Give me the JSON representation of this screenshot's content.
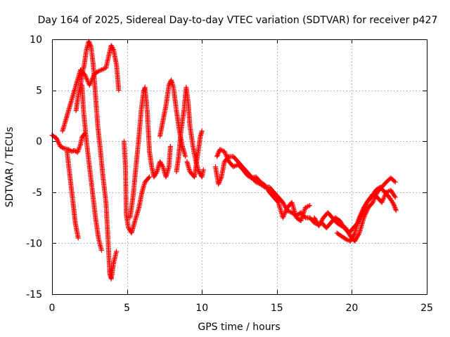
{
  "chart_data": {
    "type": "scatter",
    "title": "Day 164 of 2025, Sidereal Day-to-day VTEC variation (SDTVAR) for receiver p427",
    "xlabel": "GPS time / hours",
    "ylabel": "SDTVAR / TECUs",
    "xlim": [
      0,
      25
    ],
    "ylim": [
      -15,
      10
    ],
    "xticks": [
      0,
      5,
      10,
      15,
      20,
      25
    ],
    "yticks": [
      -15,
      -10,
      -5,
      0,
      5,
      10
    ],
    "grid": true,
    "marker": "plus",
    "marker_color": "#ff0000",
    "series": [
      {
        "name": "SDTVAR",
        "tracks": [
          [
            [
              0.0,
              0.6
            ],
            [
              0.3,
              0.3
            ],
            [
              0.55,
              -0.5
            ],
            [
              0.8,
              -0.7
            ],
            [
              1.1,
              -0.8
            ],
            [
              1.3,
              -1.0
            ],
            [
              1.5,
              -0.9
            ],
            [
              1.7,
              -1.1
            ],
            [
              1.9,
              -0.3
            ],
            [
              2.0,
              0.4
            ],
            [
              2.2,
              0.8
            ]
          ],
          [
            [
              0.7,
              1.0
            ],
            [
              0.9,
              2.0
            ],
            [
              1.1,
              3.0
            ],
            [
              1.3,
              4.0
            ],
            [
              1.5,
              5.0
            ],
            [
              1.7,
              6.0
            ],
            [
              1.9,
              7.0
            ],
            [
              2.2,
              6.5
            ],
            [
              2.5,
              5.5
            ],
            [
              2.8,
              6.5
            ],
            [
              3.0,
              6.8
            ],
            [
              3.3,
              7.0
            ],
            [
              3.6,
              7.2
            ],
            [
              3.8,
              8.5
            ],
            [
              3.95,
              9.4
            ],
            [
              4.1,
              9.0
            ],
            [
              4.3,
              7.5
            ],
            [
              4.45,
              5.0
            ]
          ],
          [
            [
              1.0,
              -1.0
            ],
            [
              1.2,
              -3.5
            ],
            [
              1.4,
              -6.0
            ],
            [
              1.55,
              -8.0
            ],
            [
              1.75,
              -9.5
            ]
          ],
          [
            [
              1.6,
              3.0
            ],
            [
              1.75,
              4.5
            ],
            [
              1.9,
              5.5
            ],
            [
              2.0,
              6.5
            ],
            [
              2.15,
              7.5
            ],
            [
              2.3,
              9.0
            ],
            [
              2.45,
              9.8
            ],
            [
              2.6,
              9.3
            ],
            [
              2.75,
              7.5
            ],
            [
              2.9,
              4.5
            ],
            [
              3.05,
              1.5
            ],
            [
              3.2,
              -0.5
            ],
            [
              3.4,
              -3.5
            ],
            [
              3.6,
              -6.0
            ],
            [
              3.75,
              -10.0
            ],
            [
              3.85,
              -13.0
            ],
            [
              3.95,
              -13.5
            ],
            [
              4.1,
              -12.0
            ],
            [
              4.3,
              -10.8
            ]
          ],
          [
            [
              2.0,
              5.5
            ],
            [
              2.1,
              3.0
            ],
            [
              2.3,
              0.0
            ],
            [
              2.5,
              -2.5
            ],
            [
              2.7,
              -5.0
            ],
            [
              2.9,
              -7.5
            ],
            [
              3.1,
              -9.5
            ],
            [
              3.3,
              -10.7
            ]
          ],
          [
            [
              4.8,
              0.0
            ],
            [
              4.9,
              -2.5
            ],
            [
              4.95,
              -7.2
            ],
            [
              5.1,
              -8.5
            ],
            [
              5.3,
              -9.0
            ],
            [
              5.5,
              -8.0
            ],
            [
              5.8,
              -6.5
            ],
            [
              6.0,
              -5.0
            ],
            [
              6.2,
              -4.0
            ],
            [
              6.5,
              -3.5
            ]
          ],
          [
            [
              5.2,
              -7.5
            ],
            [
              5.4,
              -5.5
            ],
            [
              5.6,
              -2.5
            ],
            [
              5.8,
              0.5
            ],
            [
              5.95,
              3.0
            ],
            [
              6.1,
              4.8
            ],
            [
              6.2,
              5.3
            ],
            [
              6.35,
              3.0
            ],
            [
              6.5,
              -1.0
            ],
            [
              6.65,
              -2.5
            ],
            [
              6.8,
              -3.5
            ],
            [
              7.0,
              -3.0
            ],
            [
              7.2,
              -2.0
            ],
            [
              7.4,
              -2.5
            ],
            [
              7.6,
              -3.5
            ],
            [
              7.8,
              -2.5
            ],
            [
              7.9,
              -0.5
            ]
          ],
          [
            [
              7.2,
              0.5
            ],
            [
              7.4,
              2.0
            ],
            [
              7.6,
              3.5
            ],
            [
              7.8,
              5.5
            ],
            [
              7.95,
              6.0
            ],
            [
              8.1,
              5.3
            ],
            [
              8.3,
              3.0
            ],
            [
              8.5,
              1.0
            ],
            [
              8.7,
              -0.5
            ],
            [
              8.9,
              -1.5
            ]
          ],
          [
            [
              8.3,
              -3.0
            ],
            [
              8.45,
              -1.5
            ],
            [
              8.6,
              1.0
            ],
            [
              8.8,
              3.0
            ],
            [
              8.95,
              5.3
            ],
            [
              9.1,
              3.5
            ],
            [
              9.2,
              1.5
            ],
            [
              9.4,
              -0.5
            ],
            [
              9.6,
              -2.0
            ],
            [
              9.8,
              -3.0
            ],
            [
              10.0,
              -3.5
            ],
            [
              10.1,
              -2.8
            ]
          ],
          [
            [
              9.0,
              -2.0
            ],
            [
              9.2,
              -3.0
            ],
            [
              9.5,
              -3.5
            ],
            [
              9.7,
              -1.5
            ],
            [
              9.9,
              0.5
            ],
            [
              10.0,
              1.0
            ]
          ],
          [
            [
              10.9,
              -2.5
            ],
            [
              11.1,
              -4.2
            ],
            [
              11.3,
              -3.5
            ],
            [
              11.5,
              -2.0
            ],
            [
              11.8,
              -1.5
            ],
            [
              12.1,
              -1.5
            ],
            [
              12.4,
              -2.0
            ],
            [
              12.7,
              -2.5
            ],
            [
              13.0,
              -3.0
            ],
            [
              13.3,
              -3.5
            ],
            [
              13.6,
              -4.0
            ],
            [
              13.9,
              -4.2
            ],
            [
              14.2,
              -4.5
            ],
            [
              14.5,
              -4.5
            ],
            [
              14.8,
              -5.0
            ],
            [
              15.1,
              -5.5
            ],
            [
              15.4,
              -6.0
            ],
            [
              15.7,
              -6.8
            ],
            [
              16.0,
              -7.0
            ],
            [
              16.3,
              -7.3
            ],
            [
              16.6,
              -7.0
            ],
            [
              16.9,
              -7.5
            ],
            [
              17.2,
              -7.5
            ],
            [
              17.5,
              -8.0
            ],
            [
              17.8,
              -8.2
            ]
          ],
          [
            [
              11.0,
              -1.5
            ],
            [
              11.2,
              -0.8
            ],
            [
              11.5,
              -1.0
            ],
            [
              11.8,
              -2.0
            ],
            [
              12.1,
              -2.5
            ],
            [
              12.4,
              -2.3
            ],
            [
              12.7,
              -2.7
            ],
            [
              13.0,
              -3.3
            ],
            [
              13.3,
              -3.6
            ],
            [
              13.6,
              -3.5
            ],
            [
              13.9,
              -4.0
            ],
            [
              14.2,
              -4.3
            ],
            [
              14.5,
              -5.0
            ],
            [
              14.8,
              -5.5
            ],
            [
              15.1,
              -6.0
            ],
            [
              15.4,
              -7.5
            ],
            [
              15.7,
              -6.5
            ],
            [
              16.0,
              -6.0
            ],
            [
              16.3,
              -7.5
            ],
            [
              16.6,
              -7.8
            ],
            [
              16.9,
              -6.5
            ],
            [
              17.2,
              -6.3
            ]
          ],
          [
            [
              17.5,
              -7.5
            ],
            [
              17.8,
              -8.3
            ],
            [
              18.1,
              -7.5
            ],
            [
              18.4,
              -7.0
            ],
            [
              18.7,
              -7.5
            ],
            [
              19.0,
              -8.0
            ],
            [
              19.3,
              -8.3
            ],
            [
              19.6,
              -8.5
            ],
            [
              19.9,
              -9.3
            ],
            [
              20.2,
              -9.8
            ],
            [
              20.5,
              -9.0
            ],
            [
              20.8,
              -7.5
            ],
            [
              21.1,
              -6.5
            ],
            [
              21.4,
              -6.0
            ],
            [
              21.7,
              -5.0
            ],
            [
              22.0,
              -4.5
            ],
            [
              22.3,
              -4.0
            ],
            [
              22.6,
              -3.6
            ],
            [
              22.9,
              -4.0
            ]
          ],
          [
            [
              18.0,
              -8.0
            ],
            [
              18.3,
              -8.5
            ],
            [
              18.6,
              -8.0
            ],
            [
              18.9,
              -7.5
            ],
            [
              19.2,
              -7.8
            ],
            [
              19.5,
              -8.5
            ],
            [
              19.8,
              -9.0
            ],
            [
              20.1,
              -8.5
            ],
            [
              20.4,
              -8.0
            ],
            [
              20.7,
              -7.0
            ],
            [
              21.0,
              -6.0
            ],
            [
              21.3,
              -5.5
            ],
            [
              21.6,
              -4.8
            ],
            [
              21.9,
              -4.5
            ],
            [
              22.2,
              -5.0
            ],
            [
              22.5,
              -5.5
            ],
            [
              22.8,
              -6.2
            ],
            [
              22.95,
              -6.8
            ]
          ],
          [
            [
              19.0,
              -9.0
            ],
            [
              19.3,
              -9.3
            ],
            [
              19.6,
              -9.6
            ],
            [
              19.9,
              -9.8
            ],
            [
              20.2,
              -9.0
            ],
            [
              20.5,
              -7.5
            ],
            [
              20.8,
              -6.5
            ],
            [
              21.1,
              -5.8
            ],
            [
              21.4,
              -5.2
            ],
            [
              21.7,
              -5.5
            ],
            [
              22.0,
              -6.0
            ],
            [
              22.3,
              -5.0
            ],
            [
              22.6,
              -4.8
            ],
            [
              22.9,
              -5.5
            ]
          ]
        ]
      }
    ]
  }
}
